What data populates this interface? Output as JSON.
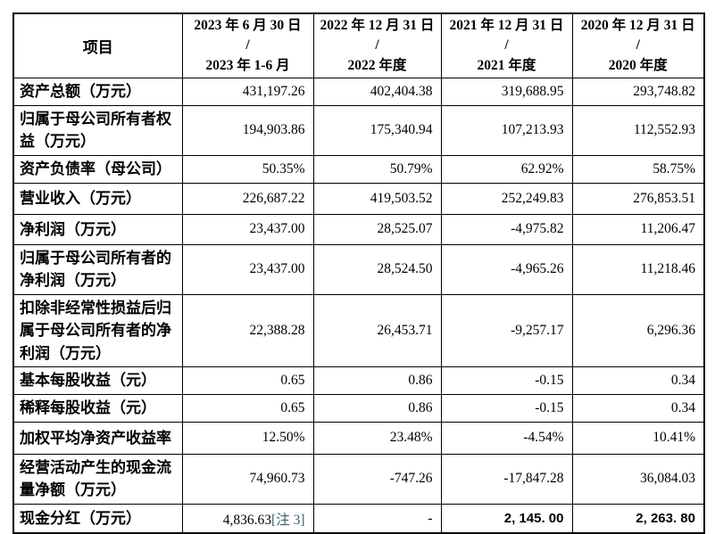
{
  "table": {
    "note_color": "#3d6069",
    "header": {
      "item_label": "项目",
      "columns": [
        {
          "line1": "2023 年 6 月 30 日",
          "slash": "/",
          "line3": "2023 年 1-6 月"
        },
        {
          "line1": "2022 年 12 月 31 日",
          "slash": "/",
          "line3": "2022 年度"
        },
        {
          "line1": "2021 年 12 月 31 日",
          "slash": "/",
          "line3": "2021 年度"
        },
        {
          "line1": "2020 年 12 月 31 日",
          "slash": "/",
          "line3": "2020 年度"
        }
      ]
    },
    "rows": [
      {
        "label": "资产总额（万元）",
        "values": [
          "431,197.26",
          "402,404.38",
          "319,688.95",
          "293,748.82"
        ]
      },
      {
        "label": "归属于母公司所有者权益（万元）",
        "values": [
          "194,903.86",
          "175,340.94",
          "107,213.93",
          "112,552.93"
        ]
      },
      {
        "label": "资产负债率（母公司）",
        "values": [
          "50.35%",
          "50.79%",
          "62.92%",
          "58.75%"
        ]
      },
      {
        "label": "营业收入（万元）",
        "values": [
          "226,687.22",
          "419,503.52",
          "252,249.83",
          "276,853.51"
        ]
      },
      {
        "label": "净利润（万元）",
        "values": [
          "23,437.00",
          "28,525.07",
          "-4,975.82",
          "11,206.47"
        ]
      },
      {
        "label": "归属于母公司所有者的净利润（万元）",
        "values": [
          "23,437.00",
          "28,524.50",
          "-4,965.26",
          "11,218.46"
        ]
      },
      {
        "label": "扣除非经常性损益后归属于母公司所有者的净利润（万元）",
        "values": [
          "22,388.28",
          "26,453.71",
          "-9,257.17",
          "6,296.36"
        ]
      },
      {
        "label": "基本每股收益（元）",
        "values": [
          "0.65",
          "0.86",
          "-0.15",
          "0.34"
        ]
      },
      {
        "label": "稀释每股收益（元）",
        "values": [
          "0.65",
          "0.86",
          "-0.15",
          "0.34"
        ]
      },
      {
        "label": "加权平均净资产收益率",
        "values": [
          "12.50%",
          "23.48%",
          "-4.54%",
          "10.41%"
        ]
      },
      {
        "label": "经营活动产生的现金流量净额（万元）",
        "values": [
          "74,960.73",
          "-747.26",
          "-17,847.28",
          "36,084.03"
        ]
      },
      {
        "label": "现金分红（万元）",
        "values": [
          "4,836.63",
          "-",
          "2, 145. 00",
          "2, 263. 80"
        ],
        "note": "[注 3]"
      }
    ]
  }
}
